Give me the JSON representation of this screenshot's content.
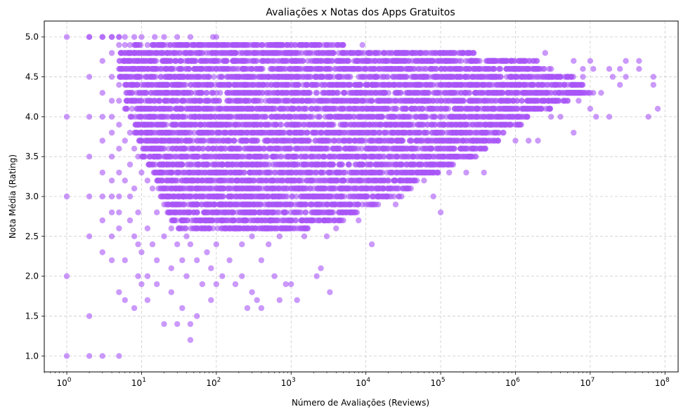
{
  "chart_data": {
    "type": "scatter",
    "title": "Avaliações x Notas dos Apps Gratuitos",
    "xlabel": "Número de Avaliações (Reviews)",
    "ylabel": "Nota Média (Rating)",
    "x_scale": "log",
    "xlim": [
      0.5,
      150000000
    ],
    "ylim": [
      0.8,
      5.2
    ],
    "x_ticks": [
      {
        "value": 1,
        "base": "10",
        "exp": "0"
      },
      {
        "value": 10,
        "base": "10",
        "exp": "1"
      },
      {
        "value": 100,
        "base": "10",
        "exp": "2"
      },
      {
        "value": 1000,
        "base": "10",
        "exp": "3"
      },
      {
        "value": 10000,
        "base": "10",
        "exp": "4"
      },
      {
        "value": 100000,
        "base": "10",
        "exp": "5"
      },
      {
        "value": 1000000,
        "base": "10",
        "exp": "6"
      },
      {
        "value": 10000000,
        "base": "10",
        "exp": "7"
      },
      {
        "value": 100000000,
        "base": "10",
        "exp": "8"
      }
    ],
    "y_ticks": [
      {
        "value": 1.0,
        "label": "1.0"
      },
      {
        "value": 1.5,
        "label": "1.5"
      },
      {
        "value": 2.0,
        "label": "2.0"
      },
      {
        "value": 2.5,
        "label": "2.5"
      },
      {
        "value": 3.0,
        "label": "3.0"
      },
      {
        "value": 3.5,
        "label": "3.5"
      },
      {
        "value": 4.0,
        "label": "4.0"
      },
      {
        "value": 4.5,
        "label": "4.5"
      },
      {
        "value": 5.0,
        "label": "5.0"
      }
    ],
    "grid": true,
    "color": "#a855f7",
    "opacity": 0.6,
    "points": [
      [
        1,
        5.0
      ],
      [
        1,
        4.0
      ],
      [
        1,
        3.0
      ],
      [
        1,
        2.0
      ],
      [
        1,
        1.0
      ],
      [
        2,
        5.0
      ],
      [
        2,
        4.5
      ],
      [
        2,
        4.0
      ],
      [
        2,
        3.5
      ],
      [
        2,
        3.0
      ],
      [
        2,
        2.5
      ],
      [
        2,
        1.5
      ],
      [
        2,
        1.0
      ],
      [
        3,
        5.0
      ],
      [
        3,
        4.7
      ],
      [
        3,
        4.3
      ],
      [
        3,
        4.0
      ],
      [
        3,
        3.7
      ],
      [
        3,
        3.3
      ],
      [
        3,
        3.0
      ],
      [
        3,
        2.7
      ],
      [
        3,
        2.3
      ],
      [
        3,
        1.0
      ],
      [
        4,
        5.0
      ],
      [
        4,
        4.8
      ],
      [
        4,
        4.5
      ],
      [
        4,
        4.2
      ],
      [
        4,
        4.0
      ],
      [
        4,
        3.8
      ],
      [
        4,
        3.5
      ],
      [
        4,
        3.2
      ],
      [
        4,
        3.0
      ],
      [
        4,
        2.8
      ],
      [
        4,
        2.5
      ],
      [
        4,
        2.2
      ],
      [
        5,
        5.0
      ],
      [
        5,
        4.6
      ],
      [
        5,
        4.4
      ],
      [
        5,
        4.2
      ],
      [
        5,
        3.9
      ],
      [
        5,
        3.6
      ],
      [
        5,
        3.3
      ],
      [
        5,
        3.0
      ],
      [
        5,
        2.8
      ],
      [
        5,
        2.6
      ],
      [
        5,
        1.8
      ],
      [
        5,
        1.0
      ],
      [
        6,
        4.9
      ],
      [
        6,
        4.5
      ],
      [
        6,
        4.1
      ],
      [
        6,
        3.7
      ],
      [
        6,
        3.2
      ],
      [
        6,
        2.2
      ],
      [
        6,
        1.7
      ],
      [
        7,
        4.9
      ],
      [
        7,
        4.3
      ],
      [
        7,
        3.8
      ],
      [
        7,
        3.4
      ],
      [
        7,
        3.0
      ],
      [
        7,
        2.7
      ],
      [
        8,
        4.8
      ],
      [
        8,
        4.2
      ],
      [
        8,
        3.6
      ],
      [
        8,
        3.1
      ],
      [
        8,
        2.5
      ],
      [
        8,
        1.6
      ],
      [
        9,
        4.7
      ],
      [
        9,
        4.0
      ],
      [
        9,
        3.5
      ],
      [
        9,
        2.8
      ],
      [
        9,
        2.4
      ],
      [
        9,
        2.0
      ],
      [
        10,
        4.6
      ],
      [
        10,
        4.1
      ],
      [
        10,
        3.7
      ],
      [
        10,
        3.3
      ],
      [
        10,
        2.3
      ],
      [
        10,
        1.9
      ],
      [
        12,
        4.4
      ],
      [
        12,
        3.8
      ],
      [
        12,
        3.2
      ],
      [
        12,
        2.6
      ],
      [
        12,
        2.0
      ],
      [
        12,
        1.7
      ],
      [
        14,
        4.5
      ],
      [
        14,
        3.9
      ],
      [
        14,
        3.1
      ],
      [
        14,
        2.4
      ],
      [
        16,
        4.3
      ],
      [
        16,
        3.5
      ],
      [
        16,
        2.8
      ],
      [
        16,
        2.2
      ],
      [
        16,
        1.9
      ],
      [
        20,
        4.7
      ],
      [
        20,
        4.0
      ],
      [
        20,
        3.4
      ],
      [
        20,
        2.9
      ],
      [
        20,
        2.5
      ],
      [
        20,
        1.4
      ],
      [
        25,
        4.6
      ],
      [
        25,
        3.7
      ],
      [
        25,
        3.1
      ],
      [
        25,
        2.6
      ],
      [
        25,
        2.1
      ],
      [
        25,
        1.8
      ],
      [
        30,
        4.4
      ],
      [
        30,
        3.6
      ],
      [
        30,
        2.9
      ],
      [
        30,
        2.4
      ],
      [
        30,
        1.4
      ],
      [
        35,
        4.2
      ],
      [
        35,
        3.4
      ],
      [
        35,
        2.7
      ],
      [
        35,
        2.2
      ],
      [
        35,
        1.6
      ],
      [
        40,
        4.8
      ],
      [
        40,
        3.9
      ],
      [
        40,
        3.0
      ],
      [
        40,
        2.5
      ],
      [
        40,
        2.0
      ],
      [
        45,
        4.5
      ],
      [
        45,
        3.7
      ],
      [
        45,
        2.4
      ],
      [
        45,
        1.4
      ],
      [
        45,
        1.2
      ],
      [
        55,
        4.1
      ],
      [
        55,
        3.3
      ],
      [
        55,
        2.8
      ],
      [
        55,
        2.2
      ],
      [
        55,
        1.5
      ],
      [
        65,
        4.6
      ],
      [
        65,
        3.8
      ],
      [
        65,
        2.6
      ],
      [
        65,
        1.9
      ],
      [
        75,
        4.3
      ],
      [
        75,
        3.5
      ],
      [
        75,
        2.9
      ],
      [
        75,
        2.3
      ],
      [
        85,
        4.0
      ],
      [
        85,
        3.2
      ],
      [
        85,
        2.1
      ],
      [
        85,
        1.7
      ],
      [
        100,
        4.7
      ],
      [
        100,
        3.9
      ],
      [
        100,
        3.0
      ],
      [
        100,
        2.4
      ],
      [
        100,
        1.9
      ],
      [
        120,
        4.5
      ],
      [
        120,
        3.6
      ],
      [
        120,
        2.7
      ],
      [
        120,
        2.0
      ],
      [
        150,
        4.2
      ],
      [
        150,
        3.4
      ],
      [
        150,
        2.9
      ],
      [
        150,
        2.2
      ],
      [
        180,
        4.8
      ],
      [
        180,
        3.8
      ],
      [
        180,
        2.6
      ],
      [
        180,
        1.9
      ],
      [
        220,
        4.4
      ],
      [
        220,
        3.5
      ],
      [
        220,
        2.4
      ],
      [
        220,
        2.0
      ],
      [
        260,
        4.1
      ],
      [
        260,
        3.2
      ],
      [
        260,
        2.8
      ],
      [
        260,
        1.6
      ],
      [
        300,
        4.6
      ],
      [
        300,
        3.7
      ],
      [
        300,
        2.5
      ],
      [
        300,
        1.8
      ],
      [
        350,
        4.3
      ],
      [
        350,
        3.4
      ],
      [
        350,
        2.7
      ],
      [
        350,
        1.7
      ],
      [
        400,
        3.9
      ],
      [
        400,
        3.0
      ],
      [
        400,
        2.2
      ],
      [
        400,
        1.6
      ],
      [
        500,
        4.5
      ],
      [
        500,
        3.6
      ],
      [
        500,
        2.6
      ],
      [
        500,
        2.4
      ],
      [
        600,
        4.2
      ],
      [
        600,
        3.3
      ],
      [
        600,
        2.8
      ],
      [
        600,
        2.0
      ],
      [
        700,
        4.7
      ],
      [
        700,
        3.8
      ],
      [
        700,
        2.5
      ],
      [
        700,
        1.7
      ],
      [
        850,
        4.4
      ],
      [
        850,
        3.5
      ],
      [
        850,
        2.9
      ],
      [
        850,
        1.9
      ],
      [
        1000,
        4.1
      ],
      [
        1000,
        3.2
      ],
      [
        1000,
        2.6
      ],
      [
        1000,
        1.9
      ],
      [
        1200,
        4.6
      ],
      [
        1200,
        3.7
      ],
      [
        1200,
        2.8
      ],
      [
        1200,
        1.7
      ],
      [
        1500,
        4.3
      ],
      [
        1500,
        3.4
      ],
      [
        1500,
        2.5
      ],
      [
        1800,
        3.9
      ],
      [
        1800,
        3.0
      ],
      [
        1800,
        2.7
      ],
      [
        2200,
        4.5
      ],
      [
        2200,
        3.6
      ],
      [
        2200,
        2.8
      ],
      [
        2200,
        2.0
      ],
      [
        2500,
        4.2
      ],
      [
        2500,
        3.3
      ],
      [
        2500,
        2.1
      ],
      [
        3000,
        4.7
      ],
      [
        3000,
        3.8
      ],
      [
        3000,
        2.9
      ],
      [
        3000,
        2.5
      ],
      [
        3300,
        4.4
      ],
      [
        3300,
        3.5
      ],
      [
        3300,
        1.8
      ],
      [
        4000,
        4.1
      ],
      [
        4000,
        3.2
      ],
      [
        4000,
        2.6
      ],
      [
        5000,
        4.6
      ],
      [
        5000,
        3.7
      ],
      [
        5000,
        2.8
      ],
      [
        6000,
        4.3
      ],
      [
        6000,
        3.4
      ],
      [
        6000,
        2.9
      ],
      [
        8000,
        3.9
      ],
      [
        8000,
        3.0
      ],
      [
        8000,
        2.7
      ],
      [
        10000,
        4.5
      ],
      [
        10000,
        3.6
      ],
      [
        10000,
        2.9
      ],
      [
        12000,
        4.2
      ],
      [
        12000,
        3.3
      ],
      [
        12000,
        2.4
      ],
      [
        15000,
        4.7
      ],
      [
        15000,
        3.8
      ],
      [
        15000,
        3.0
      ],
      [
        20000,
        4.4
      ],
      [
        20000,
        3.5
      ],
      [
        20000,
        3.1
      ],
      [
        25000,
        4.1
      ],
      [
        25000,
        3.2
      ],
      [
        25000,
        2.9
      ],
      [
        30000,
        4.6
      ],
      [
        30000,
        3.7
      ],
      [
        30000,
        3.0
      ],
      [
        40000,
        4.3
      ],
      [
        40000,
        3.4
      ],
      [
        40000,
        3.1
      ],
      [
        50000,
        3.9
      ],
      [
        50000,
        3.6
      ],
      [
        60000,
        4.5
      ],
      [
        60000,
        3.8
      ],
      [
        60000,
        3.2
      ],
      [
        80000,
        4.2
      ],
      [
        80000,
        3.5
      ],
      [
        80000,
        3.0
      ],
      [
        100000,
        4.7
      ],
      [
        100000,
        4.0
      ],
      [
        100000,
        3.6
      ],
      [
        100000,
        2.8
      ],
      [
        130000,
        4.4
      ],
      [
        130000,
        3.8
      ],
      [
        130000,
        3.3
      ],
      [
        170000,
        4.1
      ],
      [
        170000,
        3.7
      ],
      [
        170000,
        3.5
      ],
      [
        220000,
        4.6
      ],
      [
        220000,
        3.9
      ],
      [
        220000,
        3.3
      ],
      [
        300000,
        4.3
      ],
      [
        300000,
        3.8
      ],
      [
        300000,
        3.6
      ],
      [
        380000,
        4.5
      ],
      [
        380000,
        4.0
      ],
      [
        380000,
        3.3
      ],
      [
        500000,
        4.2
      ],
      [
        500000,
        3.9
      ],
      [
        500000,
        3.7
      ],
      [
        700000,
        4.7
      ],
      [
        700000,
        4.1
      ],
      [
        700000,
        3.9
      ],
      [
        900000,
        4.4
      ],
      [
        900000,
        4.0
      ],
      [
        1000000,
        4.6
      ],
      [
        1000000,
        4.3
      ],
      [
        1000000,
        3.7
      ],
      [
        1500000,
        4.5
      ],
      [
        1500000,
        4.2
      ],
      [
        1500000,
        3.7
      ],
      [
        2000000,
        4.4
      ],
      [
        2000000,
        4.1
      ],
      [
        2000000,
        3.7
      ],
      [
        2500000,
        4.8
      ],
      [
        2500000,
        4.3
      ],
      [
        3000000,
        4.6
      ],
      [
        3000000,
        4.0
      ],
      [
        4000000,
        4.5
      ],
      [
        4000000,
        4.0
      ],
      [
        5000000,
        4.4
      ],
      [
        5000000,
        4.2
      ],
      [
        6000000,
        4.7
      ],
      [
        6000000,
        3.8
      ],
      [
        7000000,
        4.3
      ],
      [
        7000000,
        4.2
      ],
      [
        8000000,
        4.6
      ],
      [
        8000000,
        4.5
      ],
      [
        10000000,
        4.3
      ],
      [
        10000000,
        4.1
      ],
      [
        10000000,
        4.7
      ],
      [
        11000000,
        4.6
      ],
      [
        11000000,
        4.3
      ],
      [
        12000000,
        4.0
      ],
      [
        14000000,
        4.3
      ],
      [
        18000000,
        4.6
      ],
      [
        18000000,
        4.0
      ],
      [
        20000000,
        4.5
      ],
      [
        25000000,
        4.6
      ],
      [
        25000000,
        4.4
      ],
      [
        30000000,
        4.7
      ],
      [
        30000000,
        4.5
      ],
      [
        45000000,
        4.7
      ],
      [
        45000000,
        4.6
      ],
      [
        60000000,
        4.0
      ],
      [
        70000000,
        4.5
      ],
      [
        70000000,
        4.4
      ],
      [
        80000000,
        4.1
      ]
    ],
    "band_points": [
      [
        2,
        5.0
      ],
      [
        3,
        5.0
      ],
      [
        4,
        5.0
      ],
      [
        5,
        5.0
      ],
      [
        6,
        5.0
      ],
      [
        8,
        5.0
      ],
      [
        10,
        5.0
      ],
      [
        15,
        5.0
      ],
      [
        20,
        5.0
      ],
      [
        30,
        5.0
      ],
      [
        45,
        5.0
      ],
      [
        90,
        5.0
      ],
      [
        100,
        5.0
      ],
      [
        5,
        4.9
      ],
      [
        8,
        4.9
      ],
      [
        12,
        4.9
      ],
      [
        20,
        4.9
      ],
      [
        30,
        4.9
      ],
      [
        60,
        4.9
      ],
      [
        100,
        4.9
      ],
      [
        200,
        4.9
      ],
      [
        700,
        4.9
      ],
      [
        1000,
        4.9
      ],
      [
        2000,
        4.9
      ],
      [
        5000,
        4.9
      ],
      [
        9000,
        4.9
      ]
    ]
  }
}
